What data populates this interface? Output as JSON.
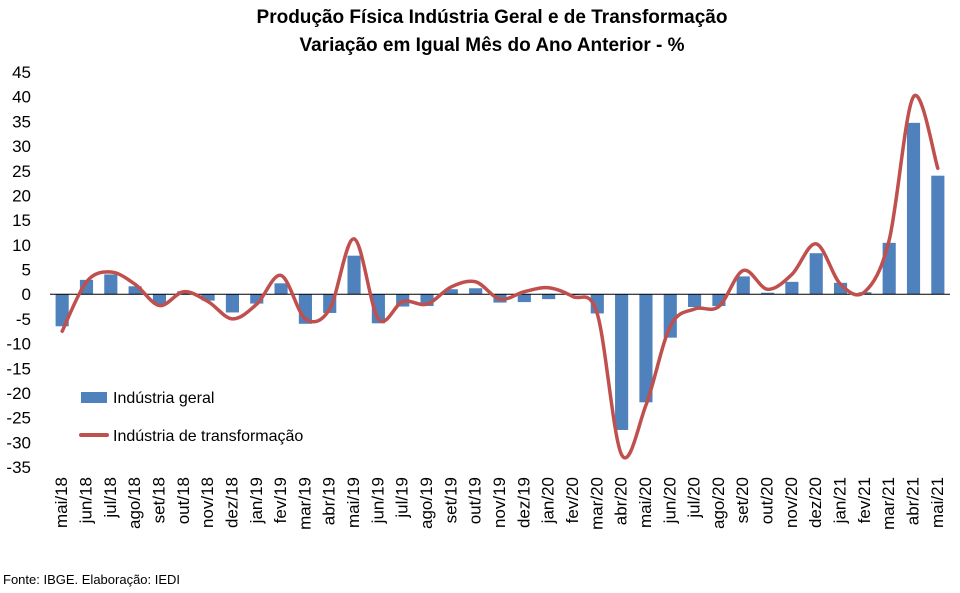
{
  "chart_data": {
    "type": "bar",
    "title": "Produção Física Indústria Geral e de Transformação",
    "subtitle": "Variação em Igual Mês do Ano Anterior - %",
    "xlabel": "",
    "ylabel": "",
    "ylim": [
      -35,
      45
    ],
    "yticks": [
      45,
      40,
      35,
      30,
      25,
      20,
      15,
      10,
      5,
      0,
      -5,
      -10,
      -15,
      -20,
      -25,
      -30,
      -35
    ],
    "grid": false,
    "legend_position": "bottom-left",
    "categories": [
      "mai/18",
      "jun/18",
      "jul/18",
      "ago/18",
      "set/18",
      "out/18",
      "nov/18",
      "dez/18",
      "jan/19",
      "fev/19",
      "mar/19",
      "abr/19",
      "mai/19",
      "jun/19",
      "jul/19",
      "ago/19",
      "set/19",
      "out/19",
      "nov/19",
      "dez/19",
      "jan/20",
      "fev/20",
      "mar/20",
      "abr/20",
      "mai/20",
      "jun/20",
      "jul/20",
      "ago/20",
      "set/20",
      "out/20",
      "nov/20",
      "dez/20",
      "jan/21",
      "fev/21",
      "mar/21",
      "abr/21",
      "mai/21"
    ],
    "series": [
      {
        "name": "Indústria geral",
        "type": "bar",
        "color": "#4f81bd",
        "values": [
          -6.5,
          2.9,
          4.0,
          1.6,
          -2.1,
          0.6,
          -1.3,
          -3.7,
          -1.9,
          2.2,
          -6.0,
          -3.8,
          7.8,
          -5.9,
          -2.5,
          -2.4,
          1.0,
          1.2,
          -1.7,
          -1.6,
          -1.0,
          -0.2,
          -3.9,
          -27.5,
          -21.9,
          -8.8,
          -2.6,
          -2.4,
          3.6,
          0.3,
          2.5,
          8.3,
          2.3,
          0.4,
          10.4,
          34.7,
          24.0
        ]
      },
      {
        "name": "Indústria de transformação",
        "type": "line",
        "color": "#c0504d",
        "values": [
          -7.5,
          2.5,
          4.5,
          2.0,
          -2.3,
          0.5,
          -1.5,
          -5.0,
          -2.0,
          3.8,
          -5.0,
          -3.0,
          11.2,
          -5.0,
          -1.5,
          -2.0,
          1.5,
          2.5,
          -1.0,
          0.5,
          1.3,
          -0.5,
          -4.0,
          -32.5,
          -22.5,
          -6.5,
          -3.0,
          -2.5,
          4.8,
          1.0,
          4.0,
          10.2,
          2.0,
          0.5,
          11.0,
          40.0,
          25.5
        ]
      }
    ]
  },
  "source": "Fonte: IBGE. Elaboração: IEDI"
}
